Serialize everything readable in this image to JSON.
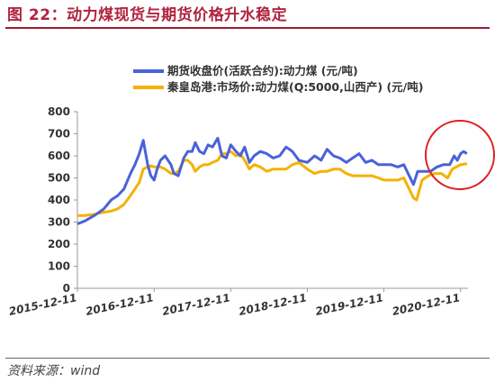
{
  "figure": {
    "title": "图 22：动力煤现货与期货价格升水稳定",
    "source": "资料来源：wind"
  },
  "chart_data": {
    "type": "line",
    "ylim": [
      0,
      800
    ],
    "yticks": [
      0,
      100,
      200,
      300,
      400,
      500,
      600,
      700,
      800
    ],
    "xlim": [
      "2015-12-11",
      "2021-01-15"
    ],
    "xticks": [
      "2015-12-11",
      "2016-12-11",
      "2017-12-11",
      "2018-12-11",
      "2019-12-11",
      "2020-12-11"
    ],
    "grid": "none",
    "legend_position": "top",
    "series": [
      {
        "name": "期货收盘价(活跃合约):动力煤   (元/吨)",
        "color": "#4a62d8",
        "x": [
          "2015-12-11",
          "2016-01-15",
          "2016-03-01",
          "2016-04-15",
          "2016-05-20",
          "2016-06-20",
          "2016-07-20",
          "2016-08-20",
          "2016-09-10",
          "2016-10-01",
          "2016-10-20",
          "2016-11-10",
          "2016-11-25",
          "2016-12-11",
          "2016-12-25",
          "2017-01-10",
          "2017-02-01",
          "2017-03-01",
          "2017-03-15",
          "2017-04-05",
          "2017-05-01",
          "2017-05-20",
          "2017-06-10",
          "2017-06-25",
          "2017-07-15",
          "2017-08-05",
          "2017-08-25",
          "2017-09-15",
          "2017-10-10",
          "2017-10-30",
          "2017-11-20",
          "2017-12-11",
          "2018-01-05",
          "2018-01-25",
          "2018-02-15",
          "2018-03-10",
          "2018-04-01",
          "2018-05-01",
          "2018-06-01",
          "2018-07-01",
          "2018-08-01",
          "2018-09-01",
          "2018-10-01",
          "2018-11-01",
          "2018-12-11",
          "2019-01-15",
          "2019-02-15",
          "2019-03-15",
          "2019-04-15",
          "2019-05-15",
          "2019-06-15",
          "2019-07-15",
          "2019-08-15",
          "2019-09-15",
          "2019-10-15",
          "2019-11-15",
          "2019-12-11",
          "2020-01-15",
          "2020-02-15",
          "2020-03-15",
          "2020-04-10",
          "2020-04-30",
          "2020-05-20",
          "2020-06-20",
          "2020-07-20",
          "2020-08-20",
          "2020-09-20",
          "2020-10-20",
          "2020-11-10",
          "2020-11-25",
          "2020-12-11",
          "2020-12-25",
          "2021-01-10"
        ],
        "values": [
          292,
          305,
          330,
          360,
          400,
          420,
          450,
          520,
          560,
          610,
          670,
          560,
          510,
          490,
          540,
          580,
          600,
          560,
          520,
          510,
          590,
          620,
          620,
          660,
          620,
          610,
          650,
          640,
          680,
          600,
          590,
          650,
          620,
          600,
          640,
          570,
          600,
          620,
          610,
          590,
          600,
          640,
          620,
          580,
          570,
          600,
          580,
          630,
          600,
          590,
          570,
          590,
          610,
          570,
          580,
          560,
          560,
          560,
          550,
          560,
          510,
          470,
          530,
          530,
          530,
          550,
          560,
          560,
          600,
          580,
          610,
          620,
          610
        ]
      },
      {
        "name": "秦皇岛港:市场价:动力煤(Q:5000,山西产)   (元/吨)",
        "color": "#f5b100",
        "x": [
          "2015-12-11",
          "2016-01-15",
          "2016-03-01",
          "2016-04-15",
          "2016-05-20",
          "2016-06-20",
          "2016-07-20",
          "2016-08-20",
          "2016-09-10",
          "2016-10-01",
          "2016-10-20",
          "2016-11-10",
          "2016-11-25",
          "2016-12-11",
          "2017-01-10",
          "2017-02-01",
          "2017-03-01",
          "2017-03-15",
          "2017-04-05",
          "2017-05-01",
          "2017-05-20",
          "2017-06-10",
          "2017-06-25",
          "2017-07-15",
          "2017-08-05",
          "2017-08-25",
          "2017-09-15",
          "2017-10-10",
          "2017-10-30",
          "2017-11-20",
          "2017-12-11",
          "2018-01-05",
          "2018-01-25",
          "2018-02-15",
          "2018-03-10",
          "2018-04-01",
          "2018-05-01",
          "2018-06-01",
          "2018-07-01",
          "2018-08-01",
          "2018-09-01",
          "2018-10-01",
          "2018-11-01",
          "2018-12-11",
          "2019-01-15",
          "2019-02-15",
          "2019-03-15",
          "2019-04-15",
          "2019-05-15",
          "2019-06-15",
          "2019-07-15",
          "2019-08-15",
          "2019-09-15",
          "2019-10-15",
          "2019-11-15",
          "2019-12-11",
          "2020-01-15",
          "2020-02-15",
          "2020-03-15",
          "2020-04-10",
          "2020-04-30",
          "2020-05-15",
          "2020-06-10",
          "2020-07-10",
          "2020-08-10",
          "2020-09-10",
          "2020-10-10",
          "2020-11-01",
          "2020-11-20",
          "2020-12-11",
          "2021-01-10"
        ],
        "values": [
          330,
          330,
          335,
          345,
          350,
          360,
          380,
          420,
          450,
          480,
          540,
          550,
          555,
          550,
          550,
          540,
          520,
          520,
          530,
          580,
          580,
          560,
          530,
          550,
          560,
          560,
          570,
          580,
          610,
          610,
          620,
          600,
          610,
          580,
          540,
          560,
          550,
          530,
          540,
          540,
          540,
          560,
          570,
          540,
          520,
          530,
          530,
          540,
          540,
          520,
          510,
          510,
          510,
          510,
          500,
          490,
          490,
          490,
          500,
          450,
          410,
          400,
          490,
          510,
          520,
          520,
          500,
          540,
          550,
          560,
          565
        ]
      }
    ]
  },
  "annotation": {
    "shape": "ellipse",
    "color": "#e02020"
  }
}
